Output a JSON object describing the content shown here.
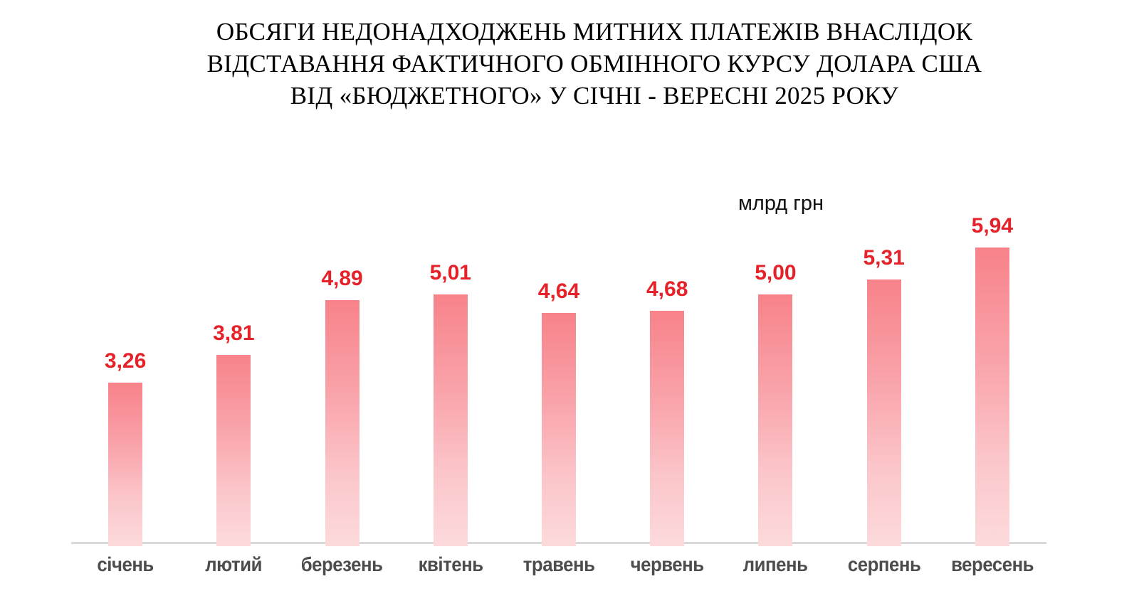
{
  "title": {
    "lines": [
      "ОБСЯГИ НЕДОНАДХОДЖЕНЬ МИТНИХ ПЛАТЕЖІВ ВНАСЛІДОК",
      "ВІДСТАВАННЯ ФАКТИЧНОГО ОБМІННОГО КУРСУ ДОЛАРА США",
      "ВІД «БЮДЖЕТНОГО» У СІЧНІ - ВЕРЕСНІ 2025 РОКУ"
    ]
  },
  "unit_label": "млрд грн",
  "chart_data": {
    "type": "bar",
    "title": "ОБСЯГИ НЕДОНАДХОДЖЕНЬ МИТНИХ ПЛАТЕЖІВ ВНАСЛІДОК ВІДСТАВАННЯ ФАКТИЧНОГО ОБМІННОГО КУРСУ ДОЛАРА США ВІД «БЮДЖЕТНОГО» У СІЧНІ - ВЕРЕСНІ 2025 РОКУ",
    "categories": [
      "січень",
      "лютий",
      "березень",
      "квітень",
      "травень",
      "червень",
      "липень",
      "серпень",
      "вересень"
    ],
    "values": [
      3.26,
      3.81,
      4.89,
      5.01,
      4.64,
      4.68,
      5.0,
      5.31,
      5.94
    ],
    "value_labels": [
      "3,26",
      "3,81",
      "4,89",
      "5,01",
      "4,64",
      "4,68",
      "5,00",
      "5,31",
      "5,94"
    ],
    "xlabel": "",
    "ylabel": "млрд грн",
    "ylim": [
      0,
      7
    ],
    "grid": false,
    "legend": false,
    "value_labels_position": "above-bars",
    "colors": {
      "bar_gradient_top": "#f8828a",
      "bar_gradient_bottom": "#fcdadc",
      "value_label": "#e5222a",
      "axis_line": "#d9d9d9",
      "category_label": "#4d4d4d",
      "title_text": "#000000"
    }
  }
}
